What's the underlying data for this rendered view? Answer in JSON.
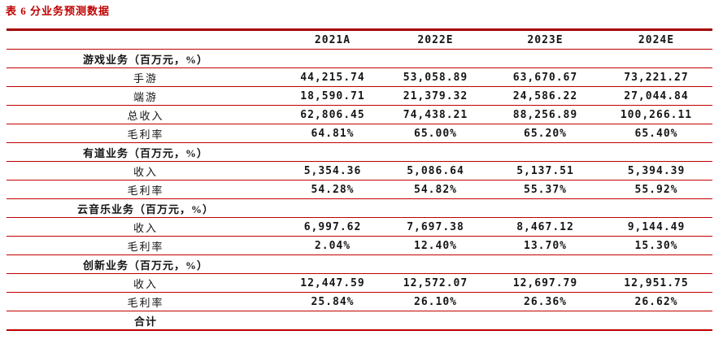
{
  "title": "表 6 分业务预测数据",
  "accent_color": "#c00000",
  "table": {
    "columns": [
      "",
      "2021A",
      "2022E",
      "2023E",
      "2024E"
    ],
    "rows": [
      {
        "label": "游戏业务（百万元，%）",
        "type": "section",
        "values": [
          "",
          "",
          "",
          ""
        ]
      },
      {
        "label": "手游",
        "type": "data",
        "values": [
          "44,215.74",
          "53,058.89",
          "63,670.67",
          "73,221.27"
        ]
      },
      {
        "label": "端游",
        "type": "data",
        "values": [
          "18,590.71",
          "21,379.32",
          "24,586.22",
          "27,044.84"
        ]
      },
      {
        "label": "总收入",
        "type": "data",
        "values": [
          "62,806.45",
          "74,438.21",
          "88,256.89",
          "100,266.11"
        ]
      },
      {
        "label": "毛利率",
        "type": "data",
        "values": [
          "64.81%",
          "65.00%",
          "65.20%",
          "65.40%"
        ]
      },
      {
        "label": "有道业务（百万元，%）",
        "type": "section",
        "values": [
          "",
          "",
          "",
          ""
        ]
      },
      {
        "label": "收入",
        "type": "data",
        "values": [
          "5,354.36",
          "5,086.64",
          "5,137.51",
          "5,394.39"
        ]
      },
      {
        "label": "毛利率",
        "type": "data",
        "values": [
          "54.28%",
          "54.82%",
          "55.37%",
          "55.92%"
        ]
      },
      {
        "label": "云音乐业务（百万元，%）",
        "type": "section",
        "values": [
          "",
          "",
          "",
          ""
        ]
      },
      {
        "label": "收入",
        "type": "data",
        "values": [
          "6,997.62",
          "7,697.38",
          "8,467.12",
          "9,144.49"
        ]
      },
      {
        "label": "毛利率",
        "type": "data",
        "values": [
          "2.04%",
          "12.40%",
          "13.70%",
          "15.30%"
        ]
      },
      {
        "label": "创新业务（百万元，%）",
        "type": "section",
        "values": [
          "",
          "",
          "",
          ""
        ]
      },
      {
        "label": "收入",
        "type": "data",
        "values": [
          "12,447.59",
          "12,572.07",
          "12,697.79",
          "12,951.75"
        ]
      },
      {
        "label": "毛利率",
        "type": "data",
        "values": [
          "25.84%",
          "26.10%",
          "26.36%",
          "26.62%"
        ]
      },
      {
        "label": "合计",
        "type": "total",
        "values": [
          "",
          "",
          "",
          ""
        ]
      }
    ]
  }
}
